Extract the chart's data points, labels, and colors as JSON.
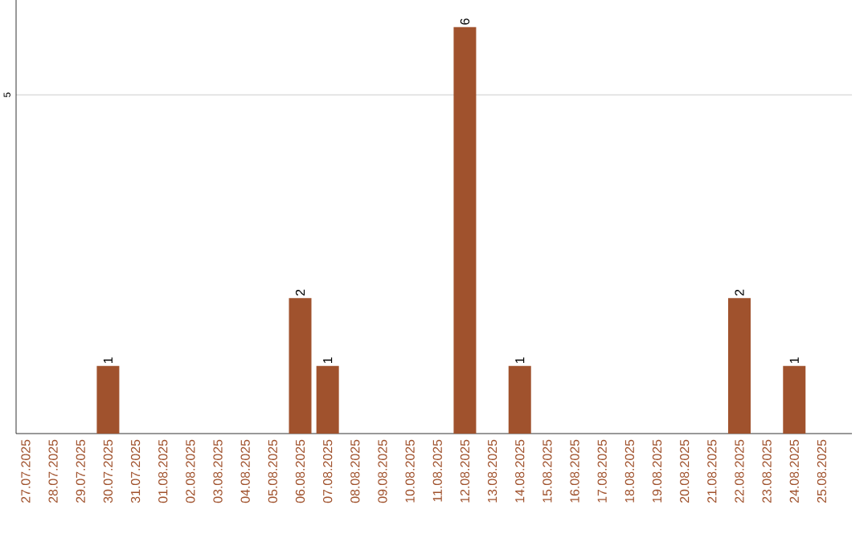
{
  "chart_data": {
    "type": "bar",
    "categories": [
      "27.07.2025",
      "28.07.2025",
      "29.07.2025",
      "30.07.2025",
      "31.07.2025",
      "01.08.2025",
      "02.08.2025",
      "03.08.2025",
      "04.08.2025",
      "05.08.2025",
      "06.08.2025",
      "07.08.2025",
      "08.08.2025",
      "09.08.2025",
      "10.08.2025",
      "11.08.2025",
      "12.08.2025",
      "13.08.2025",
      "14.08.2025",
      "15.08.2025",
      "16.08.2025",
      "17.08.2025",
      "18.08.2025",
      "19.08.2025",
      "20.08.2025",
      "21.08.2025",
      "22.08.2025",
      "23.08.2025",
      "24.08.2025",
      "25.08.2025"
    ],
    "values": [
      0,
      0,
      0,
      1,
      0,
      0,
      0,
      0,
      0,
      0,
      2,
      1,
      0,
      0,
      0,
      0,
      6,
      0,
      1,
      0,
      0,
      0,
      0,
      0,
      0,
      0,
      2,
      0,
      1,
      0
    ],
    "value_labels": [
      null,
      null,
      null,
      "1",
      null,
      null,
      null,
      null,
      null,
      null,
      "2",
      "1",
      null,
      null,
      null,
      null,
      "6",
      null,
      "1",
      null,
      null,
      null,
      null,
      null,
      null,
      null,
      "2",
      null,
      "1",
      null
    ],
    "color": "#a0522d",
    "ylim": [
      0,
      6.4
    ],
    "yticks": [
      5
    ],
    "grid": "y"
  }
}
